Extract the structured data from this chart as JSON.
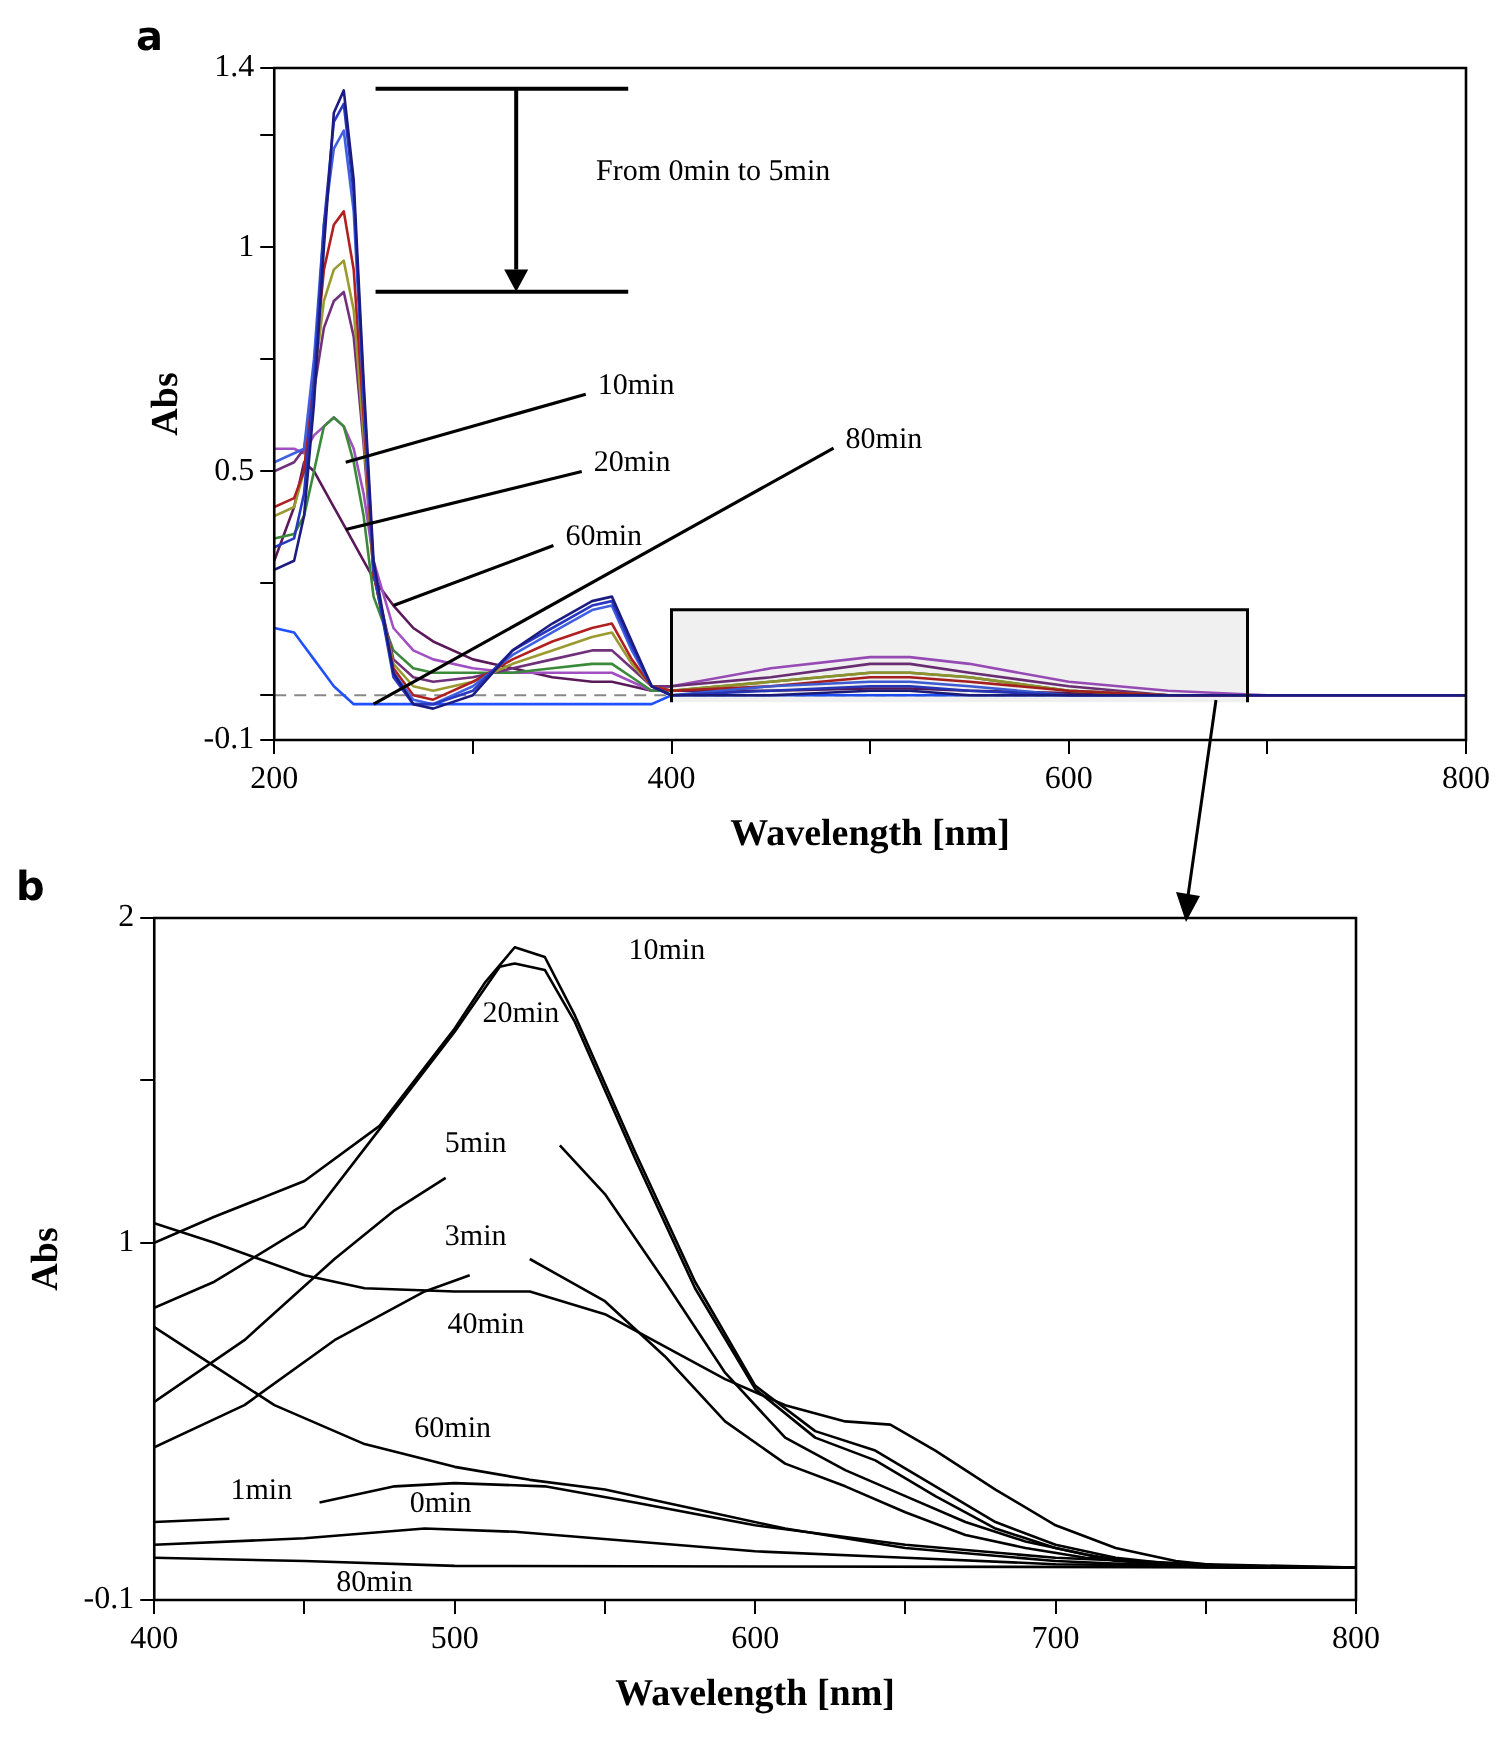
{
  "chart_data": [
    {
      "type": "line",
      "title": "a",
      "xlabel": "Wavelength [nm]",
      "ylabel": "Abs",
      "xlim": [
        200,
        800
      ],
      "ylim": [
        -0.1,
        1.4
      ],
      "xticks": [
        200,
        {
          "value": 300,
          "label": null
        },
        400,
        {
          "value": 500,
          "label": null
        },
        600,
        {
          "value": 700,
          "label": null
        },
        800
      ],
      "yticks": [
        -0.1,
        {
          "value": 0,
          "label": null
        },
        {
          "value": 0.25,
          "label": null
        },
        0.5,
        {
          "value": 0.75,
          "label": null
        },
        1,
        {
          "value": 1.25,
          "label": null
        },
        1.4
      ],
      "grid": false,
      "legend": false,
      "marker": "none",
      "line_style": "solid",
      "x": [
        200,
        210,
        215,
        220,
        225,
        230,
        235,
        240,
        245,
        250,
        260,
        270,
        280,
        300,
        320,
        340,
        360,
        370,
        380,
        390,
        400,
        450,
        500,
        520,
        550,
        600,
        650,
        700,
        800
      ],
      "series": [
        {
          "color": "#1c1c80",
          "values": [
            0.28,
            0.3,
            0.4,
            0.65,
            1.0,
            1.3,
            1.35,
            1.15,
            0.7,
            0.3,
            0.05,
            -0.02,
            -0.03,
            0.0,
            0.1,
            0.16,
            0.21,
            0.22,
            0.12,
            0.02,
            0.0,
            0.0,
            0.01,
            0.01,
            0.0,
            0.0,
            0.0,
            0.0,
            0.0
          ]
        },
        {
          "color": "#2838c0",
          "values": [
            0.33,
            0.35,
            0.45,
            0.7,
            1.05,
            1.28,
            1.32,
            1.12,
            0.68,
            0.28,
            0.04,
            -0.02,
            -0.02,
            0.01,
            0.1,
            0.15,
            0.2,
            0.21,
            0.11,
            0.02,
            0.0,
            0.01,
            0.02,
            0.02,
            0.01,
            0.0,
            0.0,
            0.0,
            0.0
          ]
        },
        {
          "color": "#4060e0",
          "values": [
            0.52,
            0.54,
            0.55,
            0.75,
            1.05,
            1.22,
            1.26,
            1.08,
            0.66,
            0.28,
            0.05,
            -0.01,
            -0.02,
            0.02,
            0.09,
            0.14,
            0.19,
            0.2,
            0.1,
            0.02,
            0.0,
            0.02,
            0.03,
            0.03,
            0.02,
            0.0,
            0.0,
            null,
            null
          ]
        },
        {
          "color": "#b02020",
          "values": [
            0.42,
            0.44,
            0.5,
            0.72,
            0.95,
            1.05,
            1.08,
            0.95,
            0.62,
            0.27,
            0.06,
            0.0,
            -0.01,
            0.03,
            0.08,
            0.12,
            0.15,
            0.16,
            0.08,
            0.02,
            0.01,
            0.02,
            0.04,
            0.04,
            0.03,
            0.01,
            0.0,
            0.0,
            0.0
          ]
        },
        {
          "color": "#9a9a30",
          "values": [
            0.4,
            0.42,
            0.5,
            0.7,
            0.88,
            0.95,
            0.97,
            0.86,
            0.58,
            0.27,
            0.07,
            0.02,
            0.01,
            0.03,
            0.07,
            0.1,
            0.13,
            0.14,
            0.07,
            0.02,
            0.01,
            0.03,
            0.05,
            0.05,
            0.04,
            0.01,
            0.0,
            null,
            null
          ]
        },
        {
          "color": "#70307a",
          "values": [
            0.5,
            0.52,
            0.55,
            0.68,
            0.82,
            0.88,
            0.9,
            0.8,
            0.56,
            0.27,
            0.08,
            0.04,
            0.03,
            0.04,
            0.06,
            0.08,
            0.1,
            0.1,
            0.06,
            0.02,
            0.02,
            0.04,
            0.07,
            0.07,
            0.05,
            0.02,
            0.0,
            0.0,
            0.0
          ]
        },
        {
          "color": "#3a8a3a",
          "values": [
            0.35,
            0.36,
            0.4,
            0.5,
            0.6,
            0.62,
            0.6,
            0.52,
            0.4,
            0.22,
            0.1,
            0.06,
            0.05,
            0.05,
            0.05,
            0.06,
            0.07,
            0.07,
            0.04,
            0.01,
            0.01,
            0.03,
            0.05,
            0.05,
            0.04,
            0.01,
            0.0,
            null,
            null
          ]
        },
        {
          "color": "#a050c0",
          "values": [
            0.55,
            0.55,
            0.54,
            0.58,
            0.6,
            0.62,
            0.6,
            0.55,
            0.45,
            0.3,
            0.15,
            0.1,
            0.08,
            0.06,
            0.05,
            0.05,
            0.05,
            0.05,
            0.03,
            0.01,
            0.02,
            0.06,
            0.085,
            0.085,
            0.07,
            0.03,
            0.01,
            0.0,
            0.0
          ]
        },
        {
          "color": "#5a1a5a",
          "values": [
            0.3,
            0.42,
            0.52,
            0.5,
            0.46,
            0.42,
            0.38,
            0.34,
            0.3,
            0.26,
            0.2,
            0.15,
            0.12,
            0.08,
            0.06,
            0.04,
            0.03,
            0.03,
            0.02,
            0.01,
            0.01,
            0.01,
            0.015,
            0.015,
            0.01,
            0.005,
            0.0,
            0.0,
            0.0
          ]
        },
        {
          "color": "#2050ff",
          "values": [
            0.15,
            0.14,
            0.11,
            0.08,
            0.05,
            0.02,
            0.0,
            -0.02,
            -0.02,
            -0.02,
            -0.02,
            -0.02,
            -0.02,
            -0.02,
            -0.02,
            -0.02,
            -0.02,
            -0.02,
            -0.02,
            -0.02,
            0.0,
            0.0,
            0.0,
            0.0,
            0.0,
            0.0,
            0.0,
            null,
            null
          ]
        }
      ],
      "ref_lines": [
        {
          "axis": "y",
          "value": 0,
          "color": "#888888",
          "line_style": "dashed"
        }
      ],
      "bands": [
        {
          "axis": "x",
          "from": 400,
          "to": 690,
          "color": "#000000"
        }
      ],
      "annotations": [
        "From 0min to 5min",
        {
          "text": "10min",
          "x": 236,
          "y": 0.52
        },
        {
          "text": "20min",
          "x": 236,
          "y": 0.37
        },
        {
          "text": "60min",
          "x": 260,
          "y": 0.2
        },
        {
          "text": "80min",
          "x": 250,
          "y": -0.02
        }
      ]
    },
    {
      "type": "line",
      "title": "b",
      "xlabel": "Wavelength [nm]",
      "ylabel": "Abs",
      "xlim": [
        400,
        800
      ],
      "ylim": [
        -0.1,
        2
      ],
      "xticks": [
        400,
        {
          "value": 450,
          "label": null
        },
        500,
        {
          "value": 550,
          "label": null
        },
        600,
        {
          "value": 650,
          "label": null
        },
        700,
        {
          "value": 750,
          "label": null
        },
        800
      ],
      "yticks": [
        -0.1,
        1,
        {
          "value": 1.5,
          "label": null
        },
        2
      ],
      "grid": false,
      "legend": false,
      "marker": "none",
      "line_style": "solid",
      "series": [
        {
          "color": "#000000",
          "x": [
            400,
            420,
            450,
            475,
            500,
            510,
            520,
            530,
            540,
            560,
            580,
            600,
            620,
            640,
            660,
            680,
            700,
            720,
            740,
            760,
            800
          ],
          "values": [
            1.0,
            1.08,
            1.19,
            1.36,
            1.66,
            1.8,
            1.91,
            1.88,
            1.7,
            1.28,
            0.88,
            0.56,
            0.42,
            0.36,
            0.25,
            0.14,
            0.07,
            0.03,
            0.01,
            0.0,
            0.0
          ]
        },
        {
          "color": "#000000",
          "x": [
            400,
            420,
            450,
            475,
            500,
            515,
            520,
            530,
            540,
            560,
            580,
            600,
            620,
            640,
            660,
            680,
            700,
            720,
            740,
            760,
            800
          ],
          "values": [
            0.8,
            0.88,
            1.05,
            1.35,
            1.65,
            1.85,
            1.86,
            1.84,
            1.68,
            1.26,
            0.86,
            0.55,
            0.4,
            0.33,
            0.22,
            0.12,
            0.06,
            0.02,
            0.01,
            0.0,
            0.0
          ]
        },
        {
          "color": "#000000",
          "x": [
            400,
            430,
            460,
            480,
            497,
            515,
            535,
            550,
            570,
            590,
            610,
            630,
            650,
            670,
            690,
            710,
            730,
            760,
            800
          ],
          "values": [
            0.51,
            0.7,
            0.95,
            1.1,
            1.2,
            null,
            1.3,
            1.15,
            0.88,
            0.6,
            0.4,
            0.3,
            0.22,
            0.14,
            0.08,
            0.04,
            0.01,
            0.0,
            0.0
          ]
        },
        {
          "color": "#000000",
          "x": [
            400,
            430,
            460,
            490,
            505,
            515,
            525,
            550,
            570,
            590,
            610,
            630,
            650,
            670,
            690,
            710,
            740,
            760,
            800
          ],
          "values": [
            0.37,
            0.5,
            0.7,
            0.85,
            0.9,
            null,
            0.95,
            0.82,
            0.65,
            0.45,
            0.32,
            0.25,
            0.17,
            0.1,
            0.06,
            0.03,
            0.01,
            0.0,
            0.0
          ]
        },
        {
          "color": "#000000",
          "x": [
            400,
            420,
            450,
            470,
            500,
            525,
            550,
            570,
            590,
            610,
            630,
            645,
            660,
            680,
            700,
            720,
            740,
            760,
            800
          ],
          "values": [
            1.06,
            1.0,
            0.9,
            0.86,
            0.85,
            0.85,
            0.78,
            0.68,
            0.58,
            0.5,
            0.45,
            0.44,
            0.36,
            0.24,
            0.13,
            0.06,
            0.02,
            0.0,
            0.0
          ]
        },
        {
          "color": "#000000",
          "x": [
            400,
            420,
            440,
            470,
            500,
            525,
            550,
            580,
            610,
            650,
            700,
            750,
            800
          ],
          "values": [
            0.74,
            0.62,
            0.5,
            0.38,
            0.31,
            0.27,
            0.24,
            0.18,
            0.12,
            0.06,
            0.02,
            0.0,
            0.0
          ]
        },
        {
          "color": "#000000",
          "x": [
            400,
            425,
            440,
            455,
            480,
            500,
            530,
            560,
            600,
            650,
            700,
            750,
            800
          ],
          "values": [
            0.14,
            0.15,
            null,
            0.2,
            0.25,
            0.26,
            0.25,
            0.2,
            0.13,
            0.07,
            0.03,
            0.01,
            0.0
          ]
        },
        {
          "color": "#000000",
          "x": [
            400,
            450,
            490,
            520,
            560,
            600,
            650,
            700,
            800
          ],
          "values": [
            0.07,
            0.09,
            0.12,
            0.11,
            0.08,
            0.05,
            0.03,
            0.01,
            0.0
          ]
        },
        {
          "color": "#000000",
          "x": [
            400,
            450,
            500,
            800
          ],
          "values": [
            0.03,
            0.02,
            0.005,
            0.0
          ]
        }
      ],
      "annotations": [
        {
          "text": "10min",
          "x": 540,
          "y": 1.7
        },
        {
          "text": "20min",
          "x": 530,
          "y": 1.84
        },
        {
          "text": "5min",
          "x": 497,
          "y": 1.2
        },
        {
          "text": "3min",
          "x": 505,
          "y": 0.9
        },
        {
          "text": "40min",
          "x": 525,
          "y": 0.85
        },
        {
          "text": "60min",
          "x": 500,
          "y": 0.31
        },
        {
          "text": "1min",
          "x": 425,
          "y": 0.15
        },
        {
          "text": "0min",
          "x": 490,
          "y": 0.12
        },
        {
          "text": "80min",
          "x": 450,
          "y": 0.02
        }
      ]
    }
  ]
}
